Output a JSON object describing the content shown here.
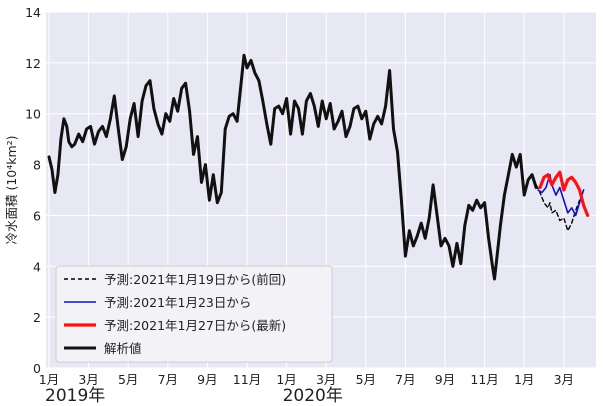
{
  "chart_data": {
    "type": "line",
    "ylabel": "冷水面積 (10⁴km²)",
    "ylim": [
      0,
      14
    ],
    "yticks": [
      0,
      2,
      4,
      6,
      8,
      10,
      12,
      14
    ],
    "xlim": [
      0,
      27.4
    ],
    "xticks": [
      {
        "x": 0,
        "label": "1月"
      },
      {
        "x": 2,
        "label": "3月"
      },
      {
        "x": 4,
        "label": "5月"
      },
      {
        "x": 6,
        "label": "7月"
      },
      {
        "x": 8,
        "label": "9月"
      },
      {
        "x": 10,
        "label": "11月"
      },
      {
        "x": 12,
        "label": "1月"
      },
      {
        "x": 14,
        "label": "3月"
      },
      {
        "x": 16,
        "label": "5月"
      },
      {
        "x": 18,
        "label": "7月"
      },
      {
        "x": 20,
        "label": "9月"
      },
      {
        "x": 22,
        "label": "11月"
      },
      {
        "x": 24,
        "label": "1月"
      },
      {
        "x": 26,
        "label": "3月"
      }
    ],
    "year_labels": [
      {
        "x": 0,
        "label": "2019年"
      },
      {
        "x": 12,
        "label": "2020年"
      }
    ],
    "grid": true,
    "legend_position": "bottom-left",
    "series": [
      {
        "name": "予測:2021年1月19日から(前回)",
        "color": "#000000",
        "style": "dashed",
        "width": 1.4,
        "points": [
          [
            24.6,
            7.2
          ],
          [
            24.8,
            6.9
          ],
          [
            25.0,
            6.5
          ],
          [
            25.2,
            6.3
          ],
          [
            25.3,
            6.5
          ],
          [
            25.4,
            6.1
          ],
          [
            25.6,
            6.2
          ],
          [
            25.8,
            5.8
          ],
          [
            26.0,
            5.9
          ],
          [
            26.2,
            5.4
          ],
          [
            26.4,
            5.7
          ],
          [
            26.6,
            6.2
          ],
          [
            26.8,
            6.6
          ]
        ]
      },
      {
        "name": "予測:2021年1月23日から",
        "color": "#1111cc",
        "style": "solid",
        "width": 1.6,
        "points": [
          [
            24.7,
            7.0
          ],
          [
            24.9,
            6.9
          ],
          [
            25.1,
            7.1
          ],
          [
            25.3,
            7.6
          ],
          [
            25.4,
            7.2
          ],
          [
            25.6,
            6.8
          ],
          [
            25.8,
            7.1
          ],
          [
            26.0,
            6.6
          ],
          [
            26.2,
            6.1
          ],
          [
            26.4,
            6.3
          ],
          [
            26.6,
            6.0
          ],
          [
            26.8,
            6.5
          ],
          [
            27.0,
            7.0
          ]
        ]
      },
      {
        "name": "予測:2021年1月27日から(最新)",
        "color": "#ff1111",
        "style": "solid",
        "width": 3.2,
        "points": [
          [
            24.8,
            7.1
          ],
          [
            25.0,
            7.5
          ],
          [
            25.2,
            7.6
          ],
          [
            25.4,
            7.2
          ],
          [
            25.6,
            7.5
          ],
          [
            25.8,
            7.7
          ],
          [
            26.0,
            7.0
          ],
          [
            26.2,
            7.4
          ],
          [
            26.4,
            7.5
          ],
          [
            26.6,
            7.3
          ],
          [
            26.8,
            7.0
          ],
          [
            27.0,
            6.4
          ],
          [
            27.2,
            6.0
          ]
        ]
      },
      {
        "name": "解析値",
        "color": "#111111",
        "style": "solid",
        "width": 3.0,
        "points": [
          [
            0.0,
            8.3
          ],
          [
            0.15,
            7.8
          ],
          [
            0.3,
            6.9
          ],
          [
            0.45,
            7.6
          ],
          [
            0.6,
            9.0
          ],
          [
            0.75,
            9.8
          ],
          [
            0.9,
            9.5
          ],
          [
            1.0,
            8.9
          ],
          [
            1.15,
            8.7
          ],
          [
            1.3,
            8.8
          ],
          [
            1.5,
            9.2
          ],
          [
            1.7,
            8.9
          ],
          [
            1.9,
            9.4
          ],
          [
            2.1,
            9.5
          ],
          [
            2.3,
            8.8
          ],
          [
            2.5,
            9.3
          ],
          [
            2.7,
            9.5
          ],
          [
            2.9,
            9.1
          ],
          [
            3.1,
            9.8
          ],
          [
            3.3,
            10.7
          ],
          [
            3.5,
            9.4
          ],
          [
            3.7,
            8.2
          ],
          [
            3.9,
            8.7
          ],
          [
            4.1,
            9.8
          ],
          [
            4.3,
            10.4
          ],
          [
            4.5,
            9.1
          ],
          [
            4.7,
            10.5
          ],
          [
            4.9,
            11.1
          ],
          [
            5.1,
            11.3
          ],
          [
            5.3,
            10.2
          ],
          [
            5.5,
            9.6
          ],
          [
            5.7,
            9.2
          ],
          [
            5.9,
            10.0
          ],
          [
            6.1,
            9.7
          ],
          [
            6.3,
            10.6
          ],
          [
            6.5,
            10.1
          ],
          [
            6.7,
            11.0
          ],
          [
            6.9,
            11.2
          ],
          [
            7.1,
            10.1
          ],
          [
            7.3,
            8.4
          ],
          [
            7.5,
            9.1
          ],
          [
            7.7,
            7.3
          ],
          [
            7.9,
            8.0
          ],
          [
            8.1,
            6.6
          ],
          [
            8.3,
            7.6
          ],
          [
            8.5,
            6.5
          ],
          [
            8.7,
            6.9
          ],
          [
            8.9,
            9.4
          ],
          [
            9.1,
            9.9
          ],
          [
            9.3,
            10.0
          ],
          [
            9.5,
            9.7
          ],
          [
            9.7,
            11.2
          ],
          [
            9.85,
            12.3
          ],
          [
            10.0,
            11.8
          ],
          [
            10.2,
            12.1
          ],
          [
            10.4,
            11.6
          ],
          [
            10.6,
            11.3
          ],
          [
            10.8,
            10.5
          ],
          [
            11.0,
            9.6
          ],
          [
            11.2,
            8.8
          ],
          [
            11.4,
            10.2
          ],
          [
            11.6,
            10.3
          ],
          [
            11.8,
            10.0
          ],
          [
            12.0,
            10.6
          ],
          [
            12.2,
            9.2
          ],
          [
            12.4,
            10.5
          ],
          [
            12.6,
            10.2
          ],
          [
            12.8,
            9.2
          ],
          [
            13.0,
            10.5
          ],
          [
            13.2,
            10.8
          ],
          [
            13.4,
            10.3
          ],
          [
            13.6,
            9.5
          ],
          [
            13.8,
            10.5
          ],
          [
            14.0,
            9.8
          ],
          [
            14.2,
            10.4
          ],
          [
            14.4,
            9.4
          ],
          [
            14.6,
            9.7
          ],
          [
            14.8,
            10.1
          ],
          [
            15.0,
            9.1
          ],
          [
            15.2,
            9.5
          ],
          [
            15.4,
            10.2
          ],
          [
            15.6,
            10.3
          ],
          [
            15.8,
            9.8
          ],
          [
            16.0,
            10.1
          ],
          [
            16.2,
            9.0
          ],
          [
            16.4,
            9.6
          ],
          [
            16.6,
            9.9
          ],
          [
            16.8,
            9.6
          ],
          [
            17.0,
            10.3
          ],
          [
            17.2,
            11.7
          ],
          [
            17.4,
            9.4
          ],
          [
            17.6,
            8.5
          ],
          [
            17.8,
            6.6
          ],
          [
            18.0,
            4.4
          ],
          [
            18.2,
            5.4
          ],
          [
            18.4,
            4.8
          ],
          [
            18.6,
            5.2
          ],
          [
            18.8,
            5.7
          ],
          [
            19.0,
            5.1
          ],
          [
            19.2,
            5.9
          ],
          [
            19.4,
            7.2
          ],
          [
            19.6,
            6.0
          ],
          [
            19.8,
            4.8
          ],
          [
            20.0,
            5.1
          ],
          [
            20.2,
            4.8
          ],
          [
            20.4,
            4.0
          ],
          [
            20.6,
            4.9
          ],
          [
            20.8,
            4.1
          ],
          [
            21.0,
            5.6
          ],
          [
            21.2,
            6.4
          ],
          [
            21.4,
            6.2
          ],
          [
            21.6,
            6.6
          ],
          [
            21.8,
            6.3
          ],
          [
            22.0,
            6.5
          ],
          [
            22.2,
            5.1
          ],
          [
            22.4,
            4.0
          ],
          [
            22.5,
            3.5
          ],
          [
            22.6,
            4.2
          ],
          [
            22.8,
            5.6
          ],
          [
            23.0,
            6.8
          ],
          [
            23.2,
            7.6
          ],
          [
            23.4,
            8.4
          ],
          [
            23.6,
            7.9
          ],
          [
            23.8,
            8.4
          ],
          [
            24.0,
            6.8
          ],
          [
            24.2,
            7.4
          ],
          [
            24.4,
            7.6
          ],
          [
            24.6,
            7.1
          ]
        ]
      }
    ]
  }
}
